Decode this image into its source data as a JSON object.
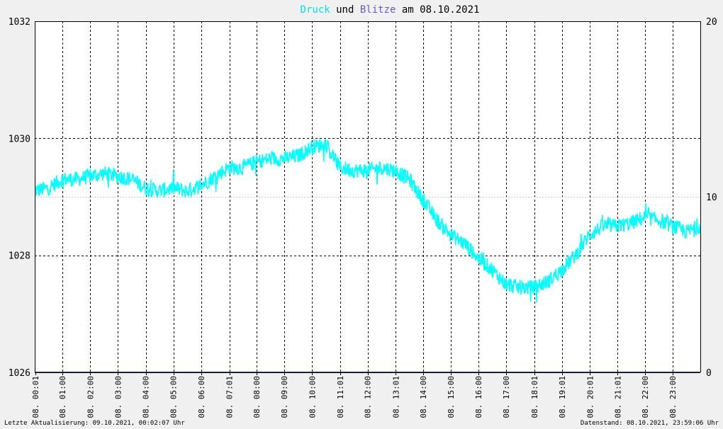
{
  "title": {
    "word1": "Druck",
    "word2": " und ",
    "word3": "Blitze",
    "word4": " am 08.10.2021"
  },
  "colors": {
    "pressure": "#00ffff",
    "lightning": "#333399",
    "title_word1": "#00e0e0",
    "title_word3": "#6a5acd",
    "background": "#f0f0f0",
    "plot": "#ffffff"
  },
  "footer": {
    "left": "Letzte Aktualisierung: 09.10.2021, 00:02:07 Uhr",
    "right": "Datenstand: 08.10.2021, 23:59:06 Uhr"
  },
  "chart_data": {
    "type": "line",
    "x_tick_labels": [
      "08. 00:01",
      "08. 01:00",
      "08. 02:00",
      "08. 03:00",
      "08. 04:00",
      "08. 05:00",
      "08. 06:00",
      "08. 07:01",
      "08. 08:00",
      "08. 09:00",
      "08. 10:00",
      "08. 11:01",
      "08. 12:00",
      "08. 13:01",
      "08. 14:00",
      "08. 15:00",
      "08. 16:00",
      "08. 17:00",
      "08. 18:01",
      "08. 19:01",
      "08. 20:01",
      "08. 21:01",
      "08. 22:00",
      "08. 23:00"
    ],
    "x_tick_hours": [
      0.02,
      1,
      2,
      3,
      4,
      5,
      6,
      7.02,
      8,
      9,
      10,
      11.02,
      12,
      13.02,
      14,
      15,
      16,
      17,
      18.02,
      19.02,
      20.02,
      21.02,
      22,
      23
    ],
    "xlim": [
      0,
      24
    ],
    "y_left": {
      "ylim": [
        1026,
        1032
      ],
      "ticks": [
        1026,
        1028,
        1030,
        1032
      ]
    },
    "y_right": {
      "ylim": [
        0,
        20
      ],
      "ticks": [
        0,
        10,
        20
      ]
    },
    "grid": true,
    "series": [
      {
        "name": "Druck",
        "axis": "left",
        "x": [
          0,
          0.5,
          1,
          1.5,
          2,
          2.5,
          3,
          3.5,
          4,
          4.5,
          5,
          5.5,
          6,
          6.5,
          7,
          7.5,
          8,
          8.5,
          9,
          9.5,
          10,
          10.5,
          11,
          11.5,
          12,
          12.5,
          13,
          13.5,
          14,
          14.5,
          15,
          15.5,
          16,
          16.5,
          17,
          17.5,
          18,
          18.5,
          19,
          19.5,
          20,
          20.5,
          21,
          21.5,
          22,
          22.5,
          23,
          23.5,
          24
        ],
        "y": [
          1029.1,
          1029.15,
          1029.3,
          1029.3,
          1029.35,
          1029.4,
          1029.35,
          1029.3,
          1029.15,
          1029.1,
          1029.15,
          1029.1,
          1029.2,
          1029.35,
          1029.5,
          1029.5,
          1029.6,
          1029.65,
          1029.65,
          1029.7,
          1029.85,
          1029.9,
          1029.5,
          1029.45,
          1029.45,
          1029.5,
          1029.45,
          1029.3,
          1028.95,
          1028.6,
          1028.35,
          1028.2,
          1027.95,
          1027.75,
          1027.5,
          1027.45,
          1027.45,
          1027.55,
          1027.75,
          1028.0,
          1028.35,
          1028.5,
          1028.5,
          1028.55,
          1028.65,
          1028.6,
          1028.5,
          1028.4,
          1028.5
        ],
        "noise": 0.13
      },
      {
        "name": "Blitze",
        "axis": "right",
        "x": [
          0,
          24
        ],
        "y": [
          0,
          0
        ]
      }
    ]
  }
}
